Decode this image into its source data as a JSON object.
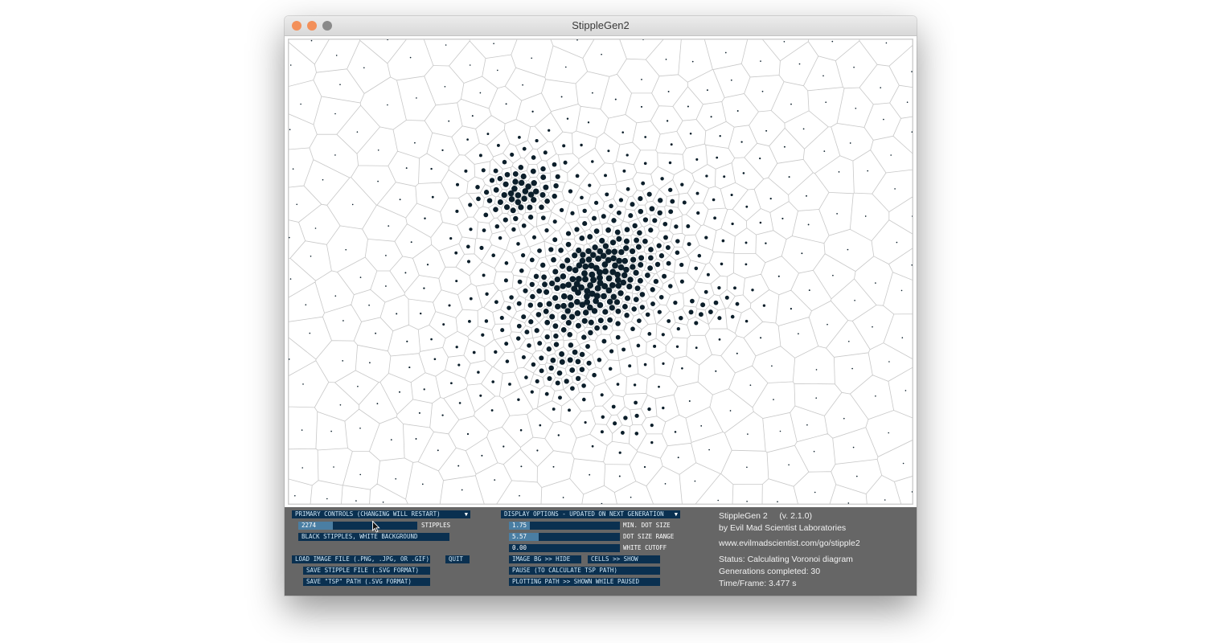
{
  "window": {
    "title": "StippleGen2"
  },
  "controls": {
    "primary_group_label": "PRIMARY CONTROLS (CHANGING WILL RESTART)",
    "stipples": {
      "value": "2274",
      "label": "STIPPLES",
      "fraction": 0.29
    },
    "color_mode_label": "BLACK STIPPLES, WHITE BACKGROUND",
    "load_image_label": "LOAD IMAGE FILE (.PNG, .JPG, OR .GIF)",
    "quit_label": "QUIT",
    "save_stipple_label": "SAVE STIPPLE FILE (.SVG FORMAT)",
    "save_tsp_label": "SAVE \"TSP\" PATH (.SVG FORMAT)"
  },
  "display": {
    "group_label": "DISPLAY OPTIONS - UPDATED ON NEXT GENERATION",
    "min_dot_size": {
      "value": "1.75",
      "label": "MIN. DOT SIZE",
      "fraction": 0.19
    },
    "dot_size_range": {
      "value": "5.57",
      "label": "DOT SIZE RANGE",
      "fraction": 0.27
    },
    "white_cutoff": {
      "value": "0.00",
      "label": "WHITE CUTOFF",
      "fraction": 0.0
    },
    "image_bg_label": "IMAGE BG >> HIDE",
    "cells_label": "CELLS >> SHOW",
    "pause_label": "PAUSE (TO CALCULATE TSP PATH)",
    "plotting_path_label": "PLOTTING PATH >> SHOWN WHILE PAUSED"
  },
  "info": {
    "app_name": "StippleGen 2",
    "version": "(v. 2.1.0)",
    "author": "by Evil Mad Scientist Laboratories",
    "url": "www.evilmadscientist.com/go/stipple2",
    "status": "Status: Calculating Voronoi diagram",
    "generations": "Generations completed: 30",
    "time_frame": "Time/Frame: 3.477 s"
  },
  "colors": {
    "control_bg": "#0a3050",
    "slider_fill": "#4a7ea3",
    "panel_bg": "#666666",
    "stipple": "#0b1e2a",
    "cell_edge": "#c8c8c8"
  }
}
